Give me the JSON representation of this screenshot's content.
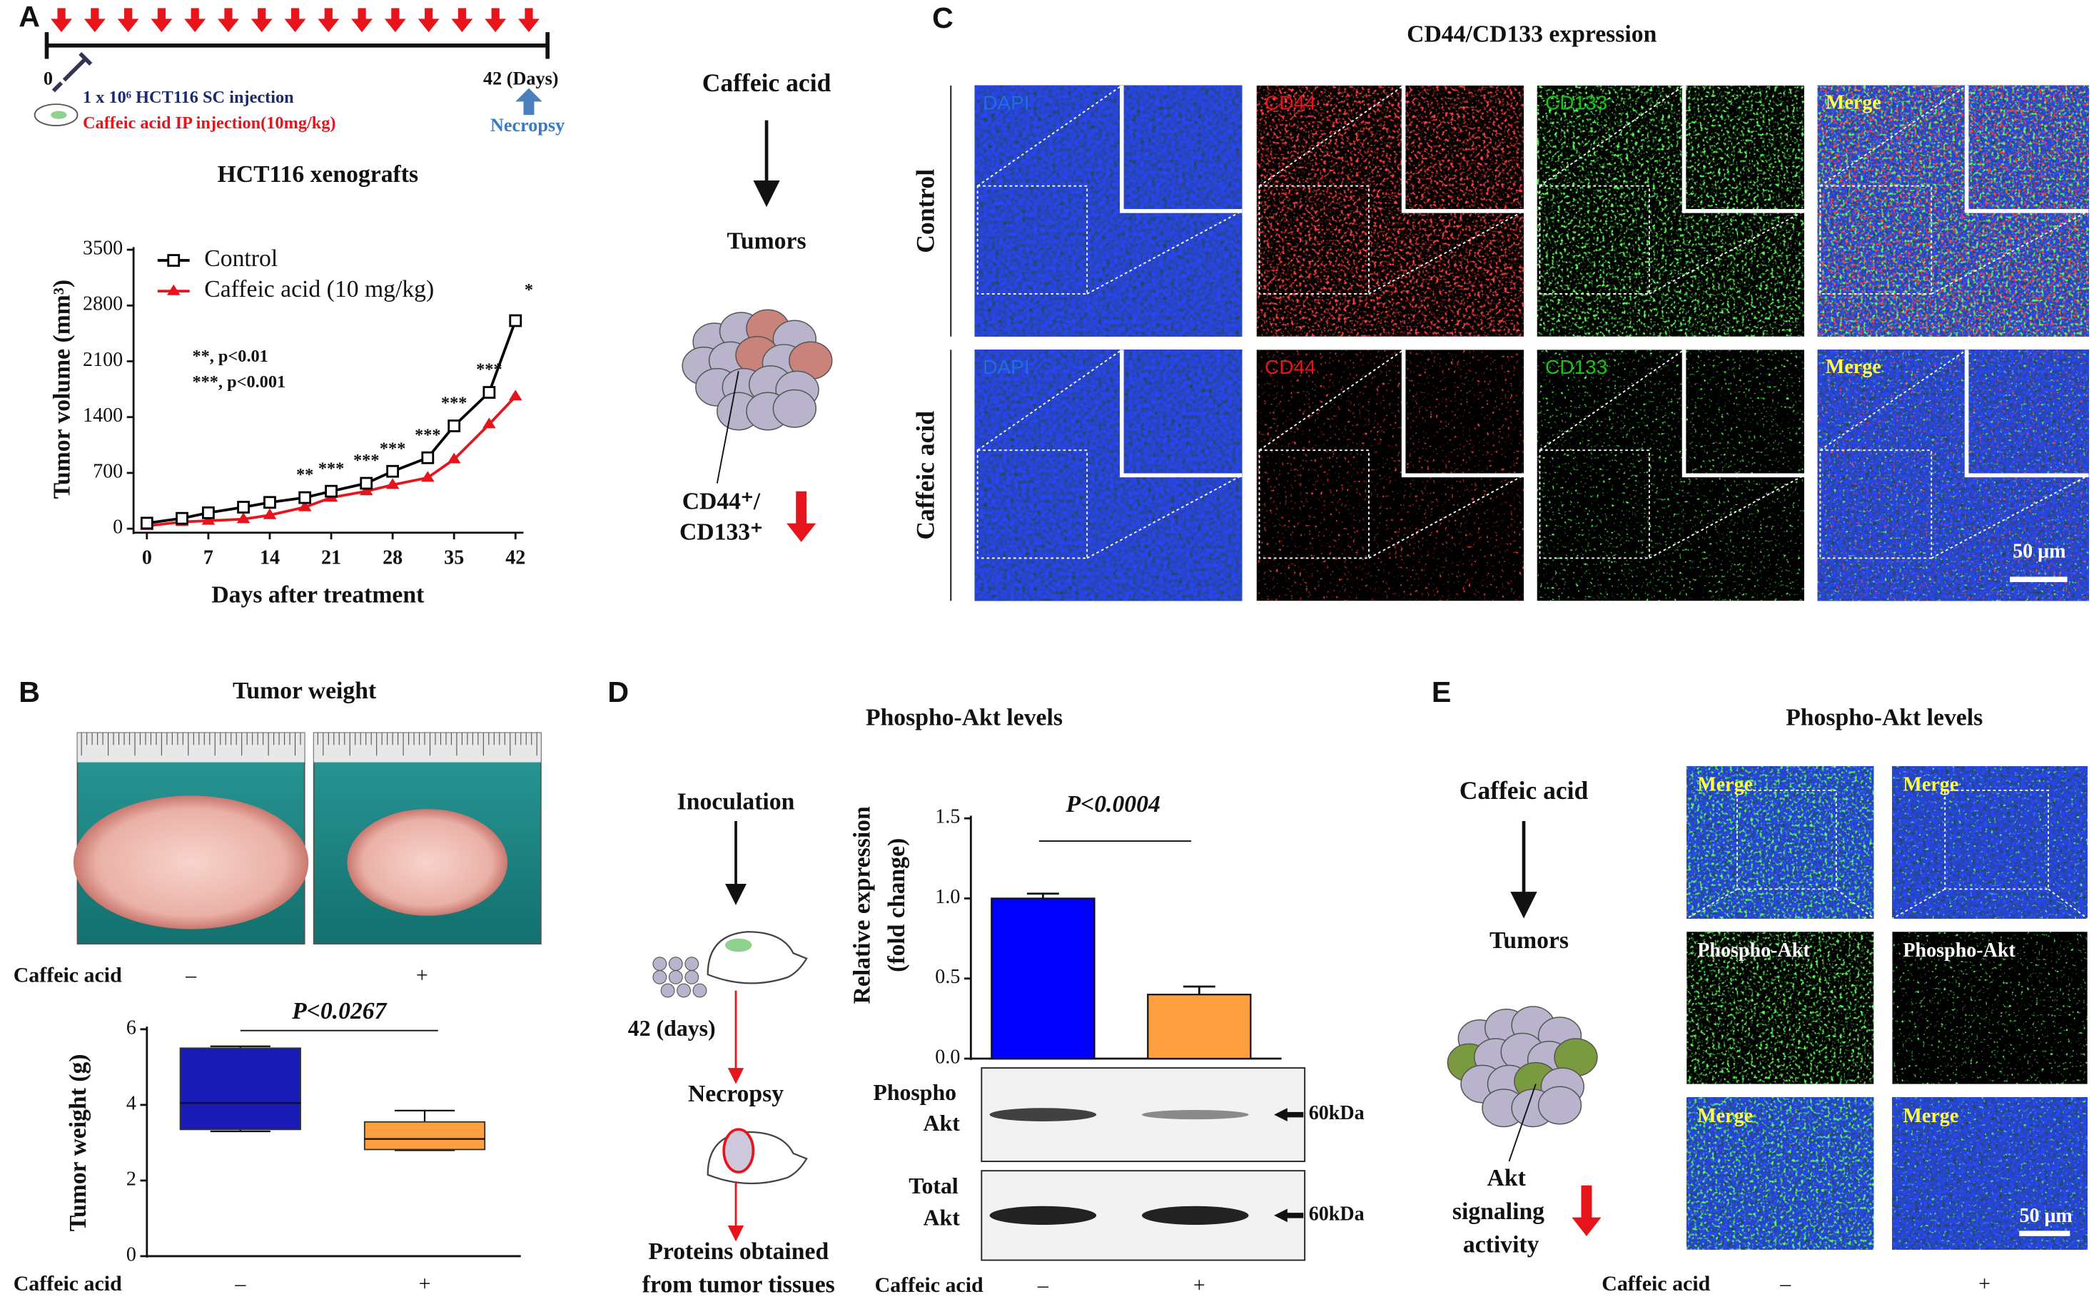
{
  "panels": {
    "A": {
      "letter": "A",
      "start": "0",
      "end": "42 (Days)",
      "injection": "1 x 10⁶  HCT116 SC injection",
      "treatment": "Caffeic acid IP injection(10mg/kg)",
      "necropsy": "Necropsy",
      "drug": "Caffeic acid",
      "tumors": "Tumors",
      "marker1": "CD44⁺/",
      "marker2": "CD133⁺"
    },
    "B": {
      "letter": "B",
      "title": "Tumor weight",
      "row_label": "Caffeic acid",
      "groups": [
        "–",
        "+"
      ]
    },
    "C": {
      "letter": "C",
      "title": "CD44/CD133 expression",
      "rows": [
        "Control",
        "Caffeic acid"
      ],
      "channels": [
        "DAPI",
        "CD44",
        "CD133",
        "Merge"
      ],
      "scale": "50 μm"
    },
    "D": {
      "letter": "D",
      "title": "Phospho-Akt levels",
      "flow": [
        "Inoculation",
        "42 (days)",
        "Necropsy",
        "Proteins obtained",
        "from tumor tissues"
      ],
      "blot_labels": [
        "Phospho",
        "Akt",
        "Total",
        "Akt"
      ],
      "size": [
        "60kDa",
        "60kDa"
      ]
    },
    "E": {
      "letter": "E",
      "title": "Phospho-Akt levels",
      "drug": "Caffeic acid",
      "tumors": "Tumors",
      "effect": [
        "Akt",
        "signaling",
        "activity"
      ],
      "image_labels": [
        "Merge",
        "Merge",
        "Phospho-Akt",
        "Phospho-Akt",
        "Merge",
        "Merge"
      ],
      "scale": "50 μm",
      "x_label": "Caffeic acid",
      "groups": [
        "–",
        "+"
      ]
    }
  },
  "chart_data": [
    {
      "type": "line",
      "title": "HCT116 xenografts",
      "x_label": "Days after treatment",
      "y_label": "Tumor volume (mm³)",
      "x": [
        0,
        4,
        7,
        11,
        14,
        18,
        21,
        25,
        28,
        32,
        35,
        39,
        42
      ],
      "series": [
        {
          "name": "Control",
          "color": "#000000",
          "marker": "square",
          "values": [
            70,
            130,
            200,
            270,
            330,
            390,
            470,
            570,
            720,
            890,
            1290,
            1710,
            2610
          ]
        },
        {
          "name": "Caffeic acid (10 mg/kg)",
          "color": "#e8141c",
          "marker": "triangle",
          "values": [
            35,
            85,
            100,
            120,
            170,
            270,
            390,
            470,
            550,
            640,
            870,
            1310,
            1660
          ]
        }
      ],
      "xlim": [
        0,
        42
      ],
      "ylim": [
        0,
        3500
      ],
      "xticks": [
        0,
        7,
        14,
        21,
        28,
        35,
        42
      ],
      "yticks": [
        0,
        700,
        1400,
        2100,
        2800,
        3500
      ],
      "legend": "upper left",
      "notes": [
        "**,  p<0.01",
        "***, p<0.001"
      ],
      "annotations": [
        {
          "x": 18,
          "text": "**"
        },
        {
          "x": 21,
          "text": "***"
        },
        {
          "x": 25,
          "text": "***"
        },
        {
          "x": 28,
          "text": "***"
        },
        {
          "x": 32,
          "text": "***"
        },
        {
          "x": 35,
          "text": "***"
        },
        {
          "x": 39,
          "text": "***"
        },
        {
          "x": 42,
          "text": "*"
        }
      ]
    },
    {
      "type": "box",
      "y_label": "Tumor weight (g)",
      "x_label": "Caffeic acid",
      "categories": [
        "–",
        "+"
      ],
      "boxes": [
        {
          "min": 3.3,
          "q1": 3.35,
          "median": 4.05,
          "q3": 5.5,
          "max": 5.55
        },
        {
          "min": 2.8,
          "q1": 2.82,
          "median": 3.1,
          "q3": 3.55,
          "max": 3.85
        }
      ],
      "colors": [
        "#1a1ab4",
        "#ffa040"
      ],
      "ylim": [
        0,
        6
      ],
      "yticks": [
        0,
        2,
        4,
        6
      ],
      "p_value": "P<0.0267"
    },
    {
      "type": "bar",
      "y_label": [
        "Relative expression",
        "(fold change)"
      ],
      "x_label": "Caffeic acid",
      "categories": [
        "–",
        "+"
      ],
      "values": [
        1.0,
        0.4
      ],
      "errors": [
        0.03,
        0.05
      ],
      "colors": [
        "#0000ff",
        "#ffa040"
      ],
      "ylim": [
        0,
        1.5
      ],
      "yticks": [
        {
          "value": 0,
          "label": "0.0"
        },
        0.5,
        {
          "value": 1,
          "label": "1.0"
        },
        1.5
      ],
      "p_value": "P<0.0004"
    }
  ]
}
